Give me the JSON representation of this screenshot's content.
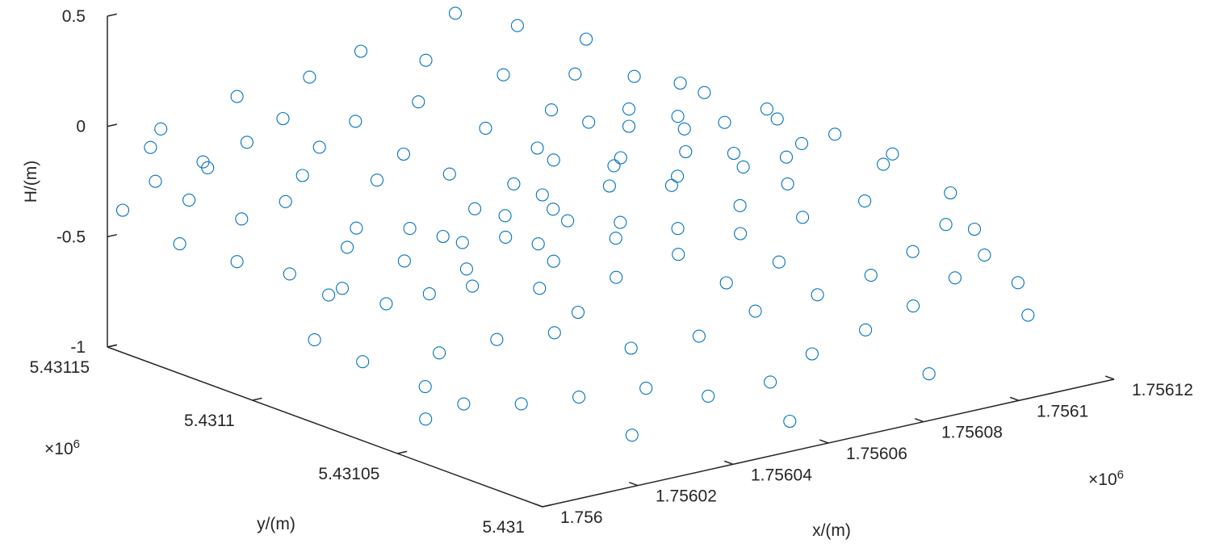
{
  "chart_data": {
    "type": "scatter3d",
    "marker": "circle-open",
    "color": "#0072BD",
    "axis_color": "#262626",
    "xlabel": "x/(m)",
    "ylabel": "y/(m)",
    "zlabel": "H/(m)",
    "x_exponent_label": "×10",
    "x_exponent_power": "6",
    "y_exponent_label": "×10",
    "y_exponent_power": "6",
    "xlim": [
      1756000,
      1756120
    ],
    "ylim": [
      5431000,
      5431150
    ],
    "zlim": [
      -1,
      0.5
    ],
    "xticks": [
      1756000,
      1756020,
      1756040,
      1756060,
      1756080,
      1756100,
      1756120
    ],
    "xtick_labels": [
      "1.756",
      "1.75602",
      "1.75604",
      "1.75606",
      "1.75608",
      "1.7561",
      "1.75612"
    ],
    "yticks": [
      5431000,
      5431050,
      5431100,
      5431150
    ],
    "ytick_labels": [
      "5.431",
      "5.43105",
      "5.4311",
      "5.43115"
    ],
    "zticks": [
      -1,
      -0.5,
      0,
      0.5
    ],
    "ztick_labels": [
      "-1",
      "-0.5",
      "0",
      "0.5"
    ],
    "grid": false,
    "points": [
      [
        1756002,
        5431148,
        -0.38
      ],
      [
        1756004,
        5431140,
        -0.22
      ],
      [
        1756006,
        5431145,
        -0.1
      ],
      [
        1756003,
        5431130,
        -0.45
      ],
      [
        1756008,
        5431135,
        -0.3
      ],
      [
        1756010,
        5431148,
        -0.05
      ],
      [
        1756012,
        5431125,
        -0.55
      ],
      [
        1756014,
        5431140,
        -0.18
      ],
      [
        1756016,
        5431130,
        -0.4
      ],
      [
        1756018,
        5431145,
        -0.25
      ],
      [
        1756020,
        5431120,
        -0.62
      ],
      [
        1756022,
        5431138,
        -0.12
      ],
      [
        1756024,
        5431128,
        -0.35
      ],
      [
        1756026,
        5431148,
        0.02
      ],
      [
        1756028,
        5431115,
        -0.7
      ],
      [
        1756030,
        5431132,
        -0.28
      ],
      [
        1756032,
        5431142,
        -0.08
      ],
      [
        1756034,
        5431120,
        -0.48
      ],
      [
        1756036,
        5431136,
        -0.2
      ],
      [
        1756038,
        5431110,
        -0.6
      ],
      [
        1756040,
        5431146,
        0.05
      ],
      [
        1756042,
        5431126,
        -0.33
      ],
      [
        1756044,
        5431118,
        -0.52
      ],
      [
        1756046,
        5431140,
        -0.15
      ],
      [
        1756048,
        5431105,
        -0.66
      ],
      [
        1756050,
        5431130,
        -0.27
      ],
      [
        1756052,
        5431148,
        0.1
      ],
      [
        1756054,
        5431112,
        -0.45
      ],
      [
        1756056,
        5431124,
        -0.36
      ],
      [
        1756058,
        5431138,
        -0.11
      ],
      [
        1756060,
        5431100,
        -0.58
      ],
      [
        1756062,
        5431142,
        0.04
      ],
      [
        1756064,
        5431115,
        -0.4
      ],
      [
        1756066,
        5431128,
        -0.22
      ],
      [
        1756068,
        5431108,
        -0.5
      ],
      [
        1756070,
        5431145,
        0.2
      ],
      [
        1756072,
        5431120,
        -0.3
      ],
      [
        1756074,
        5431135,
        -0.05
      ],
      [
        1756076,
        5431098,
        -0.55
      ],
      [
        1756078,
        5431125,
        -0.18
      ],
      [
        1756080,
        5431140,
        0.12
      ],
      [
        1756082,
        5431110,
        -0.38
      ],
      [
        1756084,
        5431122,
        -0.25
      ],
      [
        1756086,
        5431130,
        -0.08
      ],
      [
        1756088,
        5431100,
        -0.45
      ],
      [
        1756090,
        5431118,
        -0.2
      ],
      [
        1756092,
        5431136,
        0.02
      ],
      [
        1756094,
        5431105,
        -0.35
      ],
      [
        1756096,
        5431126,
        -0.12
      ],
      [
        1756098,
        5431112,
        -0.3
      ],
      [
        1756100,
        5431095,
        -0.4
      ],
      [
        1756102,
        5431120,
        -0.15
      ],
      [
        1756104,
        5431108,
        -0.28
      ],
      [
        1756106,
        5431090,
        -0.36
      ],
      [
        1756108,
        5431100,
        -0.2
      ],
      [
        1756010,
        5431095,
        -0.75
      ],
      [
        1756014,
        5431085,
        -0.82
      ],
      [
        1756018,
        5431070,
        -0.88
      ],
      [
        1756020,
        5431060,
        -0.92
      ],
      [
        1756024,
        5431075,
        -0.78
      ],
      [
        1756026,
        5431050,
        -0.9
      ],
      [
        1756030,
        5431065,
        -0.7
      ],
      [
        1756032,
        5431040,
        -0.85
      ],
      [
        1756036,
        5431055,
        -0.65
      ],
      [
        1756040,
        5431030,
        -0.8
      ],
      [
        1756042,
        5431070,
        -0.55
      ],
      [
        1756046,
        5431045,
        -0.72
      ],
      [
        1756050,
        5431025,
        -0.86
      ],
      [
        1756052,
        5431060,
        -0.5
      ],
      [
        1756056,
        5431038,
        -0.68
      ],
      [
        1756060,
        5431020,
        -0.82
      ],
      [
        1756062,
        5431055,
        -0.42
      ],
      [
        1756066,
        5431035,
        -0.6
      ],
      [
        1756070,
        5431022,
        -0.75
      ],
      [
        1756072,
        5431050,
        -0.35
      ],
      [
        1756076,
        5431030,
        -0.55
      ],
      [
        1756080,
        5431020,
        -0.68
      ],
      [
        1756082,
        5431045,
        -0.3
      ],
      [
        1756086,
        5431028,
        -0.5
      ],
      [
        1756090,
        5431020,
        -0.62
      ],
      [
        1756092,
        5431040,
        -0.25
      ],
      [
        1756096,
        5431030,
        -0.45
      ],
      [
        1756100,
        5431022,
        -0.55
      ],
      [
        1756102,
        5431050,
        -0.18
      ],
      [
        1756106,
        5431035,
        -0.4
      ],
      [
        1756108,
        5431025,
        -0.5
      ],
      [
        1756110,
        5431040,
        -0.3
      ],
      [
        1756110,
        5431060,
        -0.22
      ],
      [
        1756104,
        5431070,
        -0.15
      ],
      [
        1756098,
        5431080,
        -0.1
      ],
      [
        1756016,
        5431100,
        -0.6
      ],
      [
        1756022,
        5431090,
        -0.62
      ],
      [
        1756028,
        5431085,
        -0.58
      ],
      [
        1756034,
        5431080,
        -0.55
      ],
      [
        1756038,
        5431090,
        -0.42
      ],
      [
        1756044,
        5431085,
        -0.4
      ],
      [
        1756048,
        5431075,
        -0.48
      ],
      [
        1756054,
        5431080,
        -0.35
      ],
      [
        1756058,
        5431070,
        -0.4
      ],
      [
        1756064,
        5431082,
        -0.25
      ],
      [
        1756068,
        5431065,
        -0.38
      ],
      [
        1756074,
        5431075,
        -0.22
      ],
      [
        1756078,
        5431060,
        -0.3
      ],
      [
        1756084,
        5431072,
        -0.15
      ],
      [
        1756088,
        5431060,
        -0.25
      ],
      [
        1756094,
        5431065,
        -0.12
      ],
      [
        1756056,
        5431092,
        -0.3
      ],
      [
        1756062,
        5431098,
        -0.2
      ],
      [
        1756070,
        5431088,
        -0.18
      ],
      [
        1756076,
        5431095,
        -0.1
      ],
      [
        1756082,
        5431088,
        -0.05
      ],
      [
        1756090,
        5431092,
        0.0
      ],
      [
        1756012,
        5431060,
        -0.95
      ],
      [
        1756034,
        5431025,
        -0.96
      ],
      [
        1756058,
        5431010,
        -0.94
      ],
      [
        1756086,
        5431008,
        -0.85
      ],
      [
        1756108,
        5431010,
        -0.7
      ],
      [
        1756112,
        5431020,
        -0.62
      ],
      [
        1756112,
        5431035,
        -0.45
      ],
      [
        1756044,
        5431060,
        -0.62
      ],
      [
        1756050,
        5431095,
        -0.38
      ],
      [
        1756040,
        5431100,
        -0.45
      ],
      [
        1756026,
        5431110,
        -0.48
      ],
      [
        1756066,
        5431045,
        -0.52
      ],
      [
        1756074,
        5431040,
        -0.44
      ]
    ]
  }
}
